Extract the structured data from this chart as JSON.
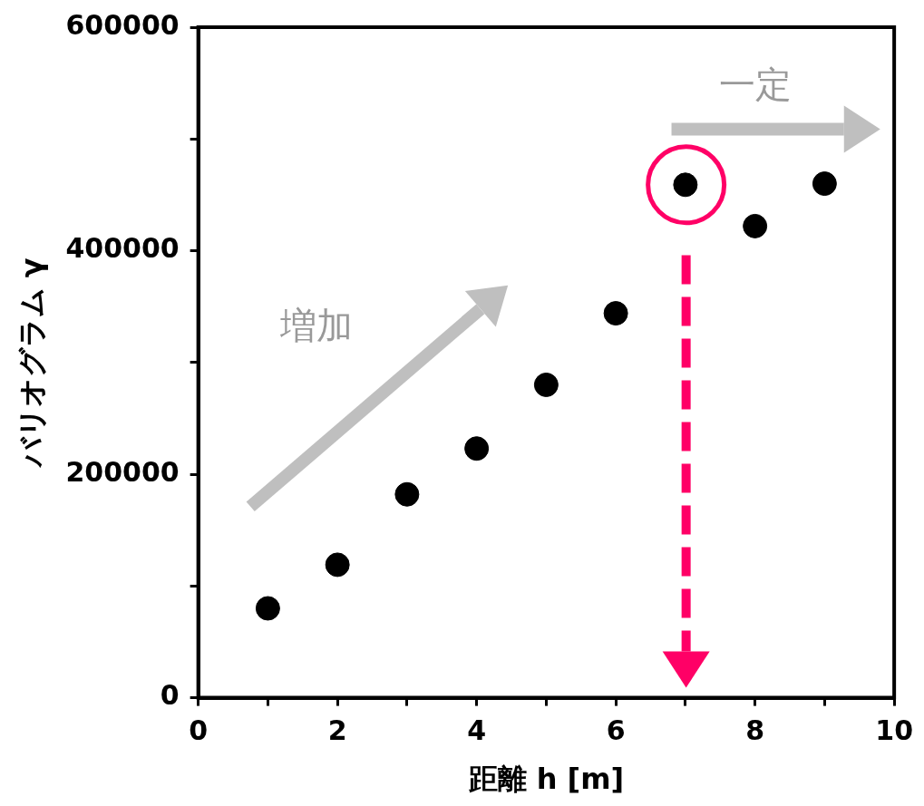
{
  "chart_data": {
    "type": "scatter",
    "xlabel": "距離 h [m]",
    "ylabel": "バリオグラム γ",
    "x": [
      1,
      2,
      3,
      4,
      5,
      6,
      7,
      8,
      9
    ],
    "values": [
      80000,
      119000,
      182000,
      223000,
      280000,
      344000,
      459000,
      422000,
      460000
    ],
    "color": "#000000",
    "marker": "circle",
    "legend": false,
    "xlim": [
      0,
      10
    ],
    "xticks": [
      0,
      {
        "value": 1,
        "label": null
      },
      2,
      {
        "value": 3,
        "label": null
      },
      4,
      {
        "value": 5,
        "label": null
      },
      6,
      {
        "value": 7,
        "label": null
      },
      8,
      {
        "value": 9,
        "label": null
      },
      10
    ],
    "ylim": [
      0,
      600000
    ],
    "yticks": [
      0,
      {
        "value": 100000,
        "label": null
      },
      200000,
      {
        "value": 300000,
        "label": null
      },
      400000,
      {
        "value": 500000,
        "label": null
      },
      600000
    ],
    "annotations": [
      "増加",
      "一定"
    ]
  }
}
